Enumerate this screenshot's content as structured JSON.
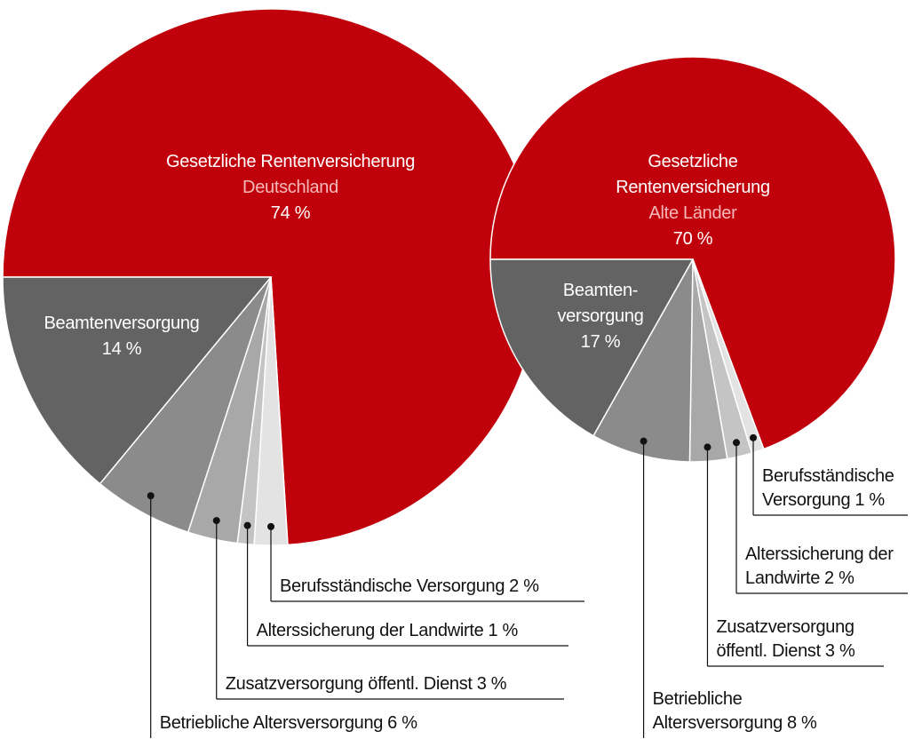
{
  "chart_data": [
    {
      "type": "pie",
      "subtitle": "Deutschland",
      "categories": [
        "Gesetzliche Rentenversicherung",
        "Berufsständische Versorgung",
        "Alterssicherung der Landwirte",
        "Zusatzversorgung öffentl. Dienst",
        "Betriebliche Altersversorgung",
        "Beamtenversorgung"
      ],
      "values": [
        74,
        2,
        1,
        3,
        6,
        14
      ],
      "value_labels": [
        "74 %",
        "2 %",
        "1 %",
        "3 %",
        "6 %",
        "14 %"
      ],
      "colors": [
        "#c0000a",
        "#e3e3e3",
        "#c4c4c4",
        "#a8a8a8",
        "#8b8b8b",
        "#626362"
      ]
    },
    {
      "type": "pie",
      "subtitle": "Alte Länder",
      "categories": [
        "Gesetzliche Rentenversicherung",
        "Berufsständische\nVersorgung",
        "Alterssicherung der\nLandwirte",
        "Zusatzversorgung\nöffentl. Dienst",
        "Betriebliche\nAltersversorgung",
        "Beamten-\nversorgung"
      ],
      "values": [
        70,
        1,
        2,
        3,
        8,
        17
      ],
      "value_labels": [
        "70 %",
        "1 %",
        "2 %",
        "3 %",
        "8 %",
        "17 %"
      ],
      "colors": [
        "#c0000a",
        "#e3e3e3",
        "#c4c4c4",
        "#a8a8a8",
        "#8b8b8b",
        "#626362"
      ]
    }
  ]
}
